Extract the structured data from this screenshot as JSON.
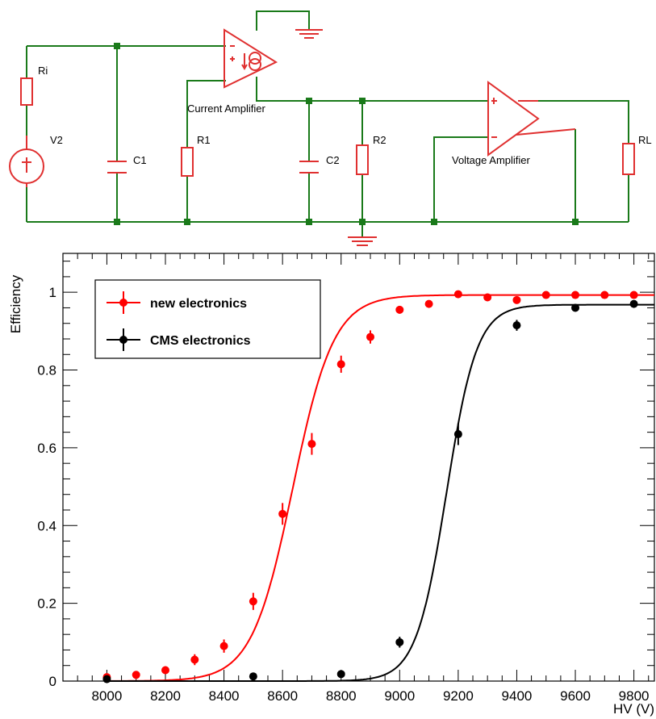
{
  "circuit": {
    "labels": {
      "ri": "Ri",
      "v2": "V2",
      "c1": "C1",
      "r1": "R1",
      "current_amp": "Current Amplifier",
      "c2": "C2",
      "r2": "R2",
      "voltage_amp": "Voltage Amplifier",
      "rl": "RL"
    },
    "colors": {
      "wire": "#1a7a1a",
      "component": "#e03030",
      "node": "#1a7a1a"
    }
  },
  "chart_data": {
    "type": "scatter",
    "xlabel": "HV (V)",
    "ylabel": "Efficiency",
    "xlim": [
      7850,
      9870
    ],
    "ylim": [
      0,
      1.1
    ],
    "xticks": [
      8000,
      8200,
      8400,
      8600,
      8800,
      9000,
      9200,
      9400,
      9600,
      9800
    ],
    "yticks": [
      0,
      0.2,
      0.4,
      0.6,
      0.8,
      1
    ],
    "grid": false,
    "legend_position": "top-left",
    "series": [
      {
        "name": "new electronics",
        "color": "#ff0000",
        "x": [
          8000,
          8100,
          8200,
          8300,
          8400,
          8500,
          8600,
          8700,
          8800,
          8900,
          9000,
          9100,
          9200,
          9300,
          9400,
          9500,
          9600,
          9700,
          9800
        ],
        "y": [
          0.01,
          0.016,
          0.028,
          0.055,
          0.09,
          0.205,
          0.43,
          0.61,
          0.815,
          0.885,
          0.955,
          0.97,
          0.995,
          0.987,
          0.98,
          0.993,
          0.993,
          0.993,
          0.993
        ],
        "err": [
          0.006,
          0.008,
          0.01,
          0.014,
          0.017,
          0.022,
          0.028,
          0.028,
          0.022,
          0.017,
          0.01,
          0.008,
          0.004,
          0.006,
          0.007,
          0.004,
          0.004,
          0.004,
          0.004
        ],
        "fit": {
          "plateau": 0.993,
          "hv50": 8635,
          "width": 70
        }
      },
      {
        "name": "CMS electronics",
        "color": "#000000",
        "x": [
          8000,
          8500,
          8800,
          9000,
          9200,
          9400,
          9600,
          9800
        ],
        "y": [
          0.005,
          0.012,
          0.018,
          0.1,
          0.635,
          0.915,
          0.96,
          0.97
        ],
        "err": [
          0.004,
          0.005,
          0.007,
          0.014,
          0.028,
          0.014,
          0.009,
          0.008
        ],
        "fit": {
          "plateau": 0.968,
          "hv50": 9160,
          "width": 52
        }
      }
    ]
  }
}
